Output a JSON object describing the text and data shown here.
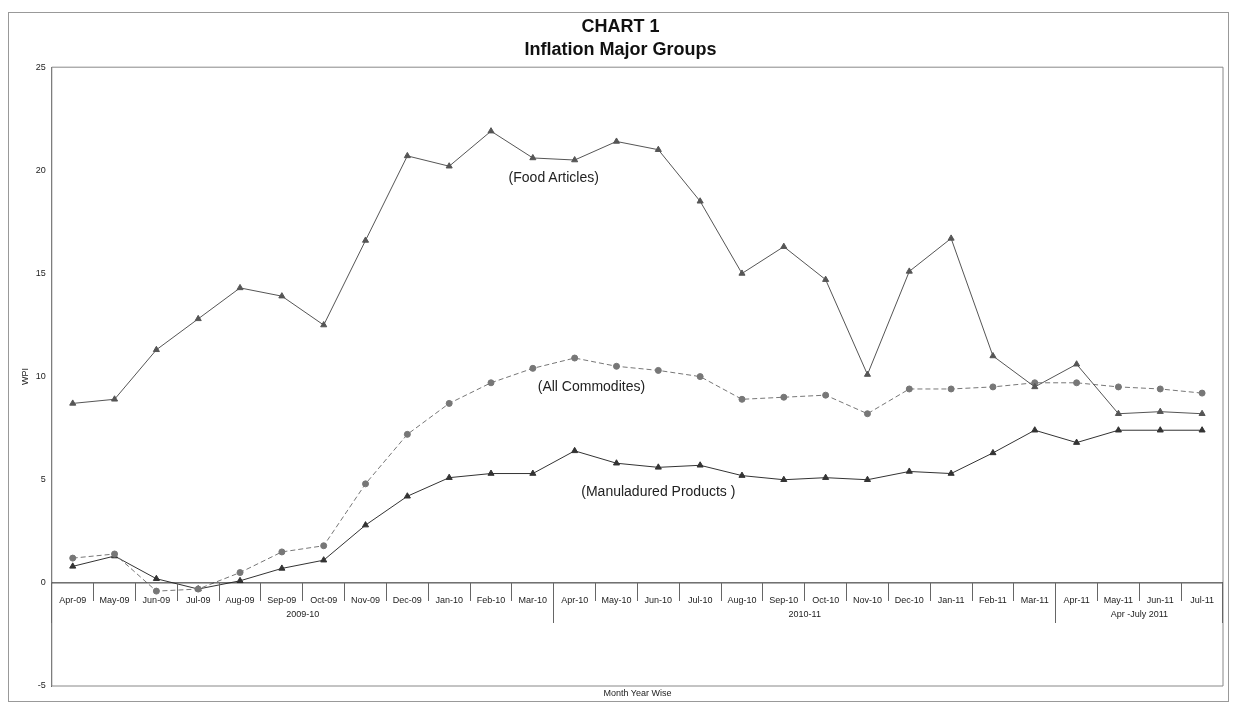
{
  "chart_data": {
    "type": "line",
    "title": "CHART 1",
    "subtitle": "Inflation Major Groups",
    "xlabel": "Month Year Wise",
    "ylabel": "WPI",
    "categories": [
      "Apr-09",
      "May-09",
      "Jun-09",
      "Jul-09",
      "Aug-09",
      "Sep-09",
      "Oct-09",
      "Nov-09",
      "Dec-09",
      "Jan-10",
      "Feb-10",
      "Mar-10",
      "Apr-10",
      "May-10",
      "Jun-10",
      "Jul-10",
      "Aug-10",
      "Sep-10",
      "Oct-10",
      "Nov-10",
      "Dec-10",
      "Jan-11",
      "Feb-11",
      "Mar-11",
      "Apr-11",
      "May-11",
      "Jun-11",
      "Jul-11"
    ],
    "series": [
      {
        "name": "(Food Articles)",
        "color": "#555555",
        "marker": "triangle",
        "line_style": "solid",
        "values": [
          8.7,
          8.9,
          11.3,
          12.8,
          14.3,
          13.9,
          12.5,
          16.6,
          20.7,
          20.2,
          21.9,
          20.6,
          20.5,
          21.4,
          21.0,
          18.5,
          15.0,
          16.3,
          14.7,
          10.1,
          15.1,
          16.7,
          11.0,
          9.5,
          10.6,
          8.2,
          8.3,
          8.2
        ]
      },
      {
        "name": "(All Commodites)",
        "color": "#777777",
        "marker": "circle",
        "line_style": "dashed",
        "values": [
          1.2,
          1.4,
          -0.4,
          -0.3,
          0.5,
          1.5,
          1.8,
          4.8,
          7.2,
          8.7,
          9.7,
          10.4,
          10.9,
          10.5,
          10.3,
          10.0,
          8.9,
          9.0,
          9.1,
          8.2,
          9.4,
          9.4,
          9.5,
          9.7,
          9.7,
          9.5,
          9.4,
          9.2
        ]
      },
      {
        "name": "(Manuladured Products )",
        "color": "#333333",
        "marker": "triangle",
        "line_style": "solid",
        "values": [
          0.8,
          1.3,
          0.2,
          -0.3,
          0.1,
          0.7,
          1.1,
          2.8,
          4.2,
          5.1,
          5.3,
          5.3,
          6.4,
          5.8,
          5.6,
          5.7,
          5.2,
          5.0,
          5.1,
          5.0,
          5.4,
          5.3,
          6.3,
          7.4,
          6.8,
          7.4,
          7.4,
          7.4
        ]
      }
    ],
    "annotations": [
      "2009-10",
      "2010-11",
      "Apr -July 2011"
    ],
    "ylim": [
      -5,
      25
    ],
    "yticks": [
      -5,
      0,
      5,
      10,
      15,
      20,
      25
    ],
    "legend": false
  }
}
